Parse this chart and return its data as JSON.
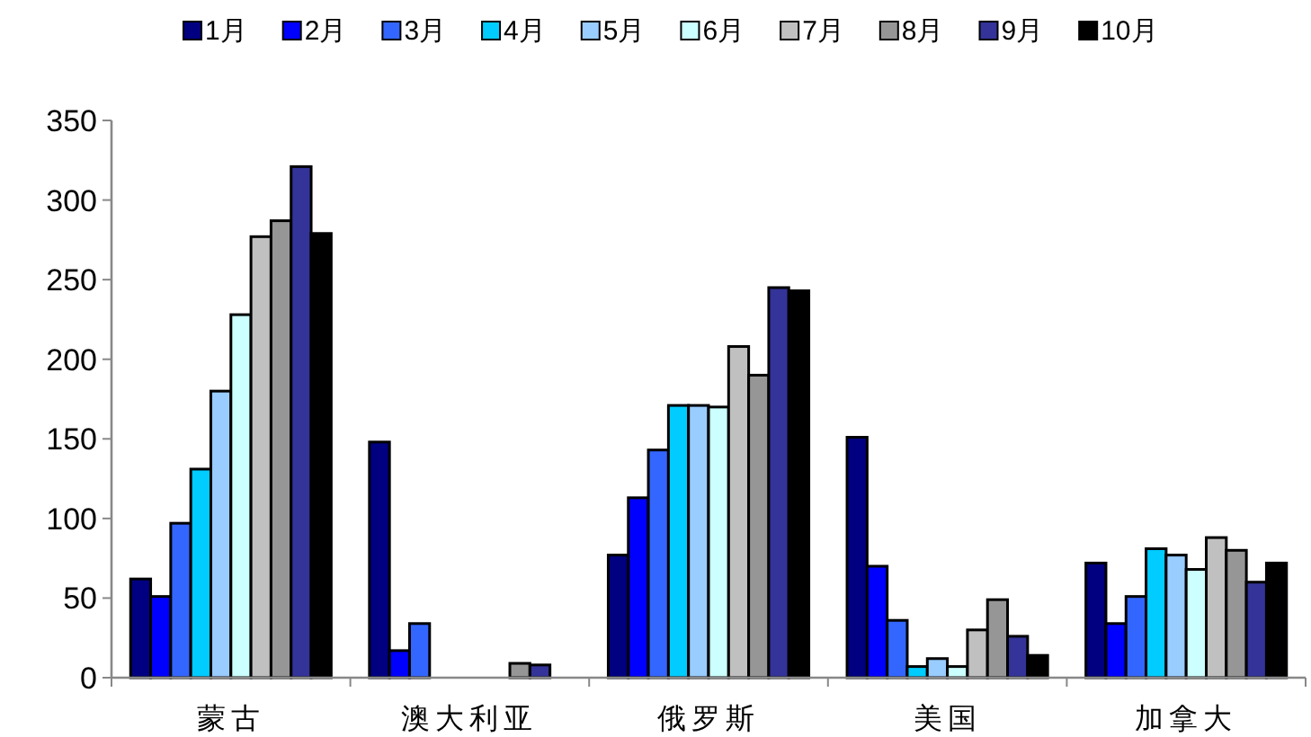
{
  "chart_data": {
    "type": "bar",
    "categories": [
      "蒙古",
      "澳大利亚",
      "俄罗斯",
      "美国",
      "加拿大"
    ],
    "series": [
      {
        "name": "1月",
        "color": "#000080",
        "values": [
          62,
          148,
          77,
          151,
          72
        ]
      },
      {
        "name": "2月",
        "color": "#0000ff",
        "values": [
          51,
          17,
          113,
          70,
          34
        ]
      },
      {
        "name": "3月",
        "color": "#3366ff",
        "values": [
          97,
          34,
          143,
          36,
          51
        ]
      },
      {
        "name": "4月",
        "color": "#00ccff",
        "values": [
          131,
          null,
          171,
          7,
          81
        ]
      },
      {
        "name": "5月",
        "color": "#99ccff",
        "values": [
          180,
          null,
          171,
          12,
          77
        ]
      },
      {
        "name": "6月",
        "color": "#ccffff",
        "values": [
          228,
          null,
          170,
          7,
          68
        ]
      },
      {
        "name": "7月",
        "color": "#c0c0c0",
        "values": [
          277,
          null,
          208,
          30,
          88
        ]
      },
      {
        "name": "8月",
        "color": "#969696",
        "values": [
          287,
          9,
          190,
          49,
          80
        ]
      },
      {
        "name": "9月",
        "color": "#333399",
        "values": [
          321,
          8,
          245,
          26,
          60
        ]
      },
      {
        "name": "10月",
        "color": "#000000",
        "values": [
          279,
          null,
          243,
          14,
          72
        ]
      }
    ],
    "ylim": [
      0,
      350
    ],
    "yticks": [
      0,
      50,
      100,
      150,
      200,
      250,
      300,
      350
    ],
    "legend": "top",
    "grid": false
  }
}
